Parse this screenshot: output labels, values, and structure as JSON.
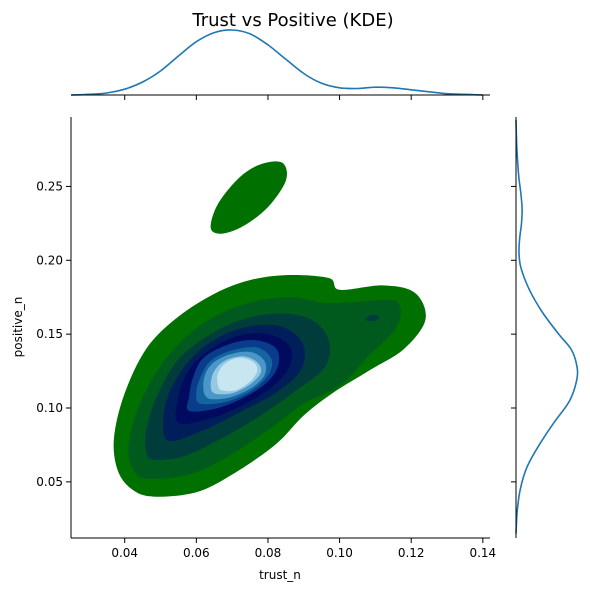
{
  "chart_data": {
    "type": "kde-joint",
    "title": "Trust vs Positive (KDE)",
    "xlabel": "trust_n",
    "ylabel": "positive_n",
    "xlim": [
      0.025,
      0.142
    ],
    "ylim": [
      0.012,
      0.297
    ],
    "xticks": [
      {
        "value": 0.04,
        "label": "0.04"
      },
      {
        "value": 0.06,
        "label": "0.06"
      },
      {
        "value": 0.08,
        "label": "0.08"
      },
      {
        "value": 0.1,
        "label": "0.10"
      },
      {
        "value": 0.12,
        "label": "0.12"
      },
      {
        "value": 0.14,
        "label": "0.14"
      }
    ],
    "yticks": [
      {
        "value": 0.05,
        "label": "0.05"
      },
      {
        "value": 0.1,
        "label": "0.10"
      },
      {
        "value": 0.15,
        "label": "0.15"
      },
      {
        "value": 0.2,
        "label": "0.20"
      },
      {
        "value": 0.25,
        "label": "0.25"
      }
    ],
    "contour_colors": [
      "#007000",
      "#005a1e",
      "#003c3c",
      "#001e5a",
      "#000a5e",
      "#0a3c8c",
      "#1464a0",
      "#4b96c8",
      "#96c8e1",
      "#c8e6f0"
    ],
    "contour_levels": [
      {
        "name": "level-1",
        "fill": "#007000",
        "polygons": [
          [
            [
              0.048,
              0.04
            ],
            [
              0.06,
              0.043
            ],
            [
              0.07,
              0.055
            ],
            [
              0.082,
              0.075
            ],
            [
              0.09,
              0.095
            ],
            [
              0.098,
              0.11
            ],
            [
              0.108,
              0.125
            ],
            [
              0.118,
              0.14
            ],
            [
              0.124,
              0.16
            ],
            [
              0.121,
              0.178
            ],
            [
              0.112,
              0.183
            ],
            [
              0.1,
              0.18
            ],
            [
              0.097,
              0.188
            ],
            [
              0.085,
              0.19
            ],
            [
              0.074,
              0.186
            ],
            [
              0.064,
              0.176
            ],
            [
              0.054,
              0.16
            ],
            [
              0.046,
              0.14
            ],
            [
              0.04,
              0.11
            ],
            [
              0.037,
              0.08
            ],
            [
              0.038,
              0.058
            ],
            [
              0.042,
              0.045
            ]
          ],
          [
            [
              0.064,
              0.222
            ],
            [
              0.066,
              0.238
            ],
            [
              0.072,
              0.256
            ],
            [
              0.078,
              0.265
            ],
            [
              0.084,
              0.266
            ],
            [
              0.085,
              0.254
            ],
            [
              0.08,
              0.236
            ],
            [
              0.073,
              0.223
            ],
            [
              0.067,
              0.218
            ]
          ]
        ]
      },
      {
        "name": "level-2",
        "fill": "#005a1e",
        "polygons": [
          [
            [
              0.047,
              0.052
            ],
            [
              0.058,
              0.055
            ],
            [
              0.068,
              0.066
            ],
            [
              0.08,
              0.085
            ],
            [
              0.09,
              0.103
            ],
            [
              0.1,
              0.115
            ],
            [
              0.108,
              0.135
            ],
            [
              0.116,
              0.155
            ],
            [
              0.116,
              0.172
            ],
            [
              0.106,
              0.172
            ],
            [
              0.096,
              0.171
            ],
            [
              0.087,
              0.175
            ],
            [
              0.076,
              0.172
            ],
            [
              0.066,
              0.163
            ],
            [
              0.057,
              0.148
            ],
            [
              0.049,
              0.125
            ],
            [
              0.043,
              0.095
            ],
            [
              0.041,
              0.07
            ],
            [
              0.043,
              0.056
            ]
          ]
        ]
      },
      {
        "name": "level-3",
        "fill": "#003c3c",
        "polygons": [
          [
            [
              0.048,
              0.065
            ],
            [
              0.056,
              0.067
            ],
            [
              0.066,
              0.078
            ],
            [
              0.078,
              0.095
            ],
            [
              0.088,
              0.112
            ],
            [
              0.096,
              0.128
            ],
            [
              0.097,
              0.146
            ],
            [
              0.092,
              0.16
            ],
            [
              0.083,
              0.164
            ],
            [
              0.073,
              0.16
            ],
            [
              0.064,
              0.15
            ],
            [
              0.055,
              0.133
            ],
            [
              0.049,
              0.108
            ],
            [
              0.046,
              0.085
            ],
            [
              0.046,
              0.07
            ]
          ]
        ]
      },
      {
        "name": "level-4",
        "fill": "#001e5a",
        "polygons": [
          [
            [
              0.052,
              0.078
            ],
            [
              0.062,
              0.085
            ],
            [
              0.072,
              0.097
            ],
            [
              0.082,
              0.11
            ],
            [
              0.089,
              0.125
            ],
            [
              0.09,
              0.142
            ],
            [
              0.085,
              0.154
            ],
            [
              0.077,
              0.156
            ],
            [
              0.068,
              0.15
            ],
            [
              0.06,
              0.137
            ],
            [
              0.054,
              0.118
            ],
            [
              0.051,
              0.098
            ]
          ]
        ]
      },
      {
        "name": "level-5",
        "fill": "#000a5e",
        "polygons": [
          [
            [
              0.055,
              0.09
            ],
            [
              0.064,
              0.093
            ],
            [
              0.073,
              0.102
            ],
            [
              0.081,
              0.114
            ],
            [
              0.086,
              0.128
            ],
            [
              0.086,
              0.142
            ],
            [
              0.08,
              0.15
            ],
            [
              0.072,
              0.149
            ],
            [
              0.064,
              0.14
            ],
            [
              0.058,
              0.126
            ],
            [
              0.055,
              0.108
            ]
          ]
        ]
      },
      {
        "name": "level-6",
        "fill": "#0a3c8c",
        "polygons": [
          [
            [
              0.058,
              0.098
            ],
            [
              0.066,
              0.1
            ],
            [
              0.074,
              0.108
            ],
            [
              0.08,
              0.118
            ],
            [
              0.083,
              0.13
            ],
            [
              0.082,
              0.141
            ],
            [
              0.076,
              0.146
            ],
            [
              0.069,
              0.143
            ],
            [
              0.062,
              0.134
            ],
            [
              0.059,
              0.12
            ],
            [
              0.058,
              0.108
            ]
          ]
        ]
      },
      {
        "name": "level-7",
        "fill": "#1464a0",
        "polygons": [
          [
            [
              0.061,
              0.103
            ],
            [
              0.068,
              0.104
            ],
            [
              0.075,
              0.111
            ],
            [
              0.08,
              0.122
            ],
            [
              0.081,
              0.133
            ],
            [
              0.077,
              0.141
            ],
            [
              0.07,
              0.139
            ],
            [
              0.064,
              0.132
            ],
            [
              0.061,
              0.12
            ],
            [
              0.06,
              0.11
            ]
          ]
        ]
      },
      {
        "name": "level-8",
        "fill": "#4b96c8",
        "polygons": [
          [
            [
              0.063,
              0.107
            ],
            [
              0.069,
              0.107
            ],
            [
              0.075,
              0.113
            ],
            [
              0.079,
              0.122
            ],
            [
              0.079,
              0.132
            ],
            [
              0.075,
              0.138
            ],
            [
              0.069,
              0.136
            ],
            [
              0.064,
              0.129
            ],
            [
              0.062,
              0.118
            ]
          ]
        ]
      },
      {
        "name": "level-9",
        "fill": "#96c8e1",
        "polygons": [
          [
            [
              0.065,
              0.11
            ],
            [
              0.07,
              0.11
            ],
            [
              0.075,
              0.116
            ],
            [
              0.078,
              0.124
            ],
            [
              0.077,
              0.131
            ],
            [
              0.073,
              0.135
            ],
            [
              0.068,
              0.132
            ],
            [
              0.065,
              0.125
            ],
            [
              0.064,
              0.116
            ]
          ]
        ]
      },
      {
        "name": "level-10",
        "fill": "#c8e6f0",
        "polygons": [
          [
            [
              0.067,
              0.112
            ],
            [
              0.071,
              0.112
            ],
            [
              0.075,
              0.118
            ],
            [
              0.077,
              0.125
            ],
            [
              0.076,
              0.131
            ],
            [
              0.072,
              0.134
            ],
            [
              0.068,
              0.13
            ],
            [
              0.066,
              0.123
            ],
            [
              0.066,
              0.116
            ]
          ]
        ]
      },
      {
        "name": "level-extra",
        "fill": "#003c3c",
        "polygons": [
          [
            [
              0.107,
              0.16
            ],
            [
              0.109,
              0.163
            ],
            [
              0.111,
              0.162
            ],
            [
              0.11,
              0.159
            ],
            [
              0.108,
              0.159
            ]
          ]
        ]
      }
    ],
    "marginal_x": {
      "x": [
        0.025,
        0.03,
        0.035,
        0.04,
        0.045,
        0.05,
        0.055,
        0.06,
        0.065,
        0.07,
        0.075,
        0.08,
        0.085,
        0.09,
        0.095,
        0.1,
        0.105,
        0.11,
        0.115,
        0.12,
        0.125,
        0.13,
        0.135,
        0.14
      ],
      "density": [
        0.0,
        0.01,
        0.03,
        0.09,
        0.2,
        0.37,
        0.6,
        0.82,
        0.96,
        1.0,
        0.94,
        0.77,
        0.55,
        0.33,
        0.18,
        0.11,
        0.1,
        0.12,
        0.11,
        0.08,
        0.05,
        0.02,
        0.01,
        0.0
      ]
    },
    "marginal_y": {
      "y": [
        0.015,
        0.03,
        0.045,
        0.06,
        0.075,
        0.09,
        0.105,
        0.12,
        0.13,
        0.14,
        0.15,
        0.165,
        0.18,
        0.195,
        0.205,
        0.215,
        0.225,
        0.235,
        0.245,
        0.255,
        0.265,
        0.28,
        0.295
      ],
      "density": [
        0.0,
        0.02,
        0.07,
        0.18,
        0.38,
        0.62,
        0.88,
        1.0,
        0.99,
        0.9,
        0.7,
        0.43,
        0.22,
        0.08,
        0.05,
        0.06,
        0.09,
        0.1,
        0.08,
        0.05,
        0.03,
        0.01,
        0.0
      ]
    }
  }
}
